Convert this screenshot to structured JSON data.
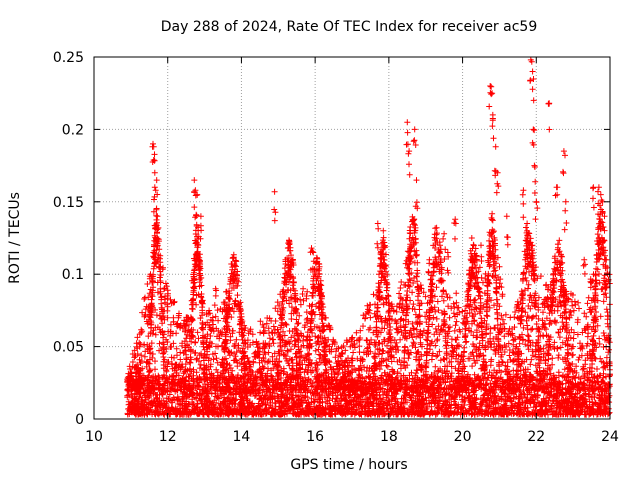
{
  "chart_data": {
    "type": "scatter",
    "title": "Day 288 of 2024, Rate Of TEC Index for receiver ac59",
    "xlabel": "GPS time / hours",
    "ylabel": "ROTI / TECUs",
    "xlim": [
      10,
      24
    ],
    "ylim": [
      0,
      0.25
    ],
    "x_ticks": [
      10,
      12,
      14,
      16,
      18,
      20,
      22,
      24
    ],
    "x_tick_labels": [
      "10",
      "12",
      "14",
      "16",
      "18",
      "20",
      "22",
      "24"
    ],
    "y_ticks": [
      0,
      0.05,
      0.1,
      0.15,
      0.2,
      0.25
    ],
    "y_tick_labels": [
      "0",
      "0.05",
      "0.1",
      "0.15",
      "0.2",
      "0.25"
    ],
    "grid": true,
    "marker": "+",
    "marker_color": "#ff0000",
    "series": [
      {
        "name": "ROTI",
        "x": [
          11.6,
          11.62,
          11.65,
          11.7,
          11.68,
          11.8,
          11.72,
          12.0,
          12.1,
          12.72,
          12.75,
          12.8,
          12.9,
          12.85,
          13.3,
          13.6,
          14.9,
          15.3,
          15.9,
          15.95,
          16.1,
          17.7,
          17.85,
          18.5,
          18.55,
          18.7,
          18.75,
          19.1,
          19.5,
          19.6,
          19.8,
          20.25,
          20.5,
          20.75,
          20.8,
          20.82,
          20.9,
          20.95,
          21.2,
          21.65,
          21.75,
          21.85,
          21.9,
          21.92,
          21.95,
          22.0,
          22.35,
          22.55,
          22.75,
          22.8,
          23.3,
          23.55,
          23.7,
          23.75,
          23.8,
          23.85,
          23.9,
          11.0,
          11.1,
          11.2,
          11.3,
          11.5,
          12.3,
          12.6,
          13.1,
          13.8,
          14.2,
          14.6,
          15.1,
          15.5,
          15.8,
          16.3,
          16.9,
          17.2,
          17.5,
          18.0,
          18.3,
          18.9,
          19.3,
          19.9,
          20.1,
          20.4,
          21.0,
          21.4,
          21.8,
          22.2,
          22.6,
          23.0,
          23.4,
          23.6
        ],
        "y": [
          0.19,
          0.188,
          0.16,
          0.165,
          0.12,
          0.09,
          0.14,
          0.085,
          0.08,
          0.165,
          0.158,
          0.155,
          0.14,
          0.11,
          0.09,
          0.088,
          0.157,
          0.105,
          0.118,
          0.115,
          0.1,
          0.135,
          0.13,
          0.205,
          0.185,
          0.2,
          0.165,
          0.11,
          0.128,
          0.115,
          0.138,
          0.125,
          0.12,
          0.23,
          0.225,
          0.21,
          0.188,
          0.17,
          0.14,
          0.158,
          0.135,
          0.248,
          0.24,
          0.2,
          0.175,
          0.15,
          0.218,
          0.16,
          0.185,
          0.15,
          0.11,
          0.16,
          0.16,
          0.155,
          0.15,
          0.14,
          0.11,
          0.03,
          0.025,
          0.02,
          0.04,
          0.05,
          0.03,
          0.06,
          0.05,
          0.045,
          0.04,
          0.06,
          0.07,
          0.03,
          0.06,
          0.04,
          0.02,
          0.035,
          0.07,
          0.06,
          0.08,
          0.05,
          0.06,
          0.05,
          0.07,
          0.065,
          0.06,
          0.055,
          0.07,
          0.08,
          0.06,
          0.05,
          0.065,
          0.07
        ]
      }
    ],
    "dense_band": {
      "y_min": 0.003,
      "y_max": 0.03,
      "note": "continuous dense cluster of points near zero from ~10.9 h to 24 h"
    },
    "envelope": [
      {
        "x": 10.9,
        "lo": 0.003,
        "hi": 0.03
      },
      {
        "x": 11.2,
        "lo": 0.003,
        "hi": 0.06
      },
      {
        "x": 11.4,
        "lo": 0.003,
        "hi": 0.09
      },
      {
        "x": 11.7,
        "lo": 0.003,
        "hi": 0.13
      },
      {
        "x": 12.0,
        "lo": 0.003,
        "hi": 0.09
      },
      {
        "x": 12.5,
        "lo": 0.003,
        "hi": 0.07
      },
      {
        "x": 12.8,
        "lo": 0.003,
        "hi": 0.12
      },
      {
        "x": 13.2,
        "lo": 0.003,
        "hi": 0.07
      },
      {
        "x": 13.7,
        "lo": 0.003,
        "hi": 0.09
      },
      {
        "x": 14.3,
        "lo": 0.003,
        "hi": 0.06
      },
      {
        "x": 14.8,
        "lo": 0.003,
        "hi": 0.08
      },
      {
        "x": 15.2,
        "lo": 0.003,
        "hi": 0.09
      },
      {
        "x": 15.7,
        "lo": 0.003,
        "hi": 0.09
      },
      {
        "x": 16.2,
        "lo": 0.003,
        "hi": 0.08
      },
      {
        "x": 16.6,
        "lo": 0.003,
        "hi": 0.05
      },
      {
        "x": 17.1,
        "lo": 0.003,
        "hi": 0.06
      },
      {
        "x": 17.6,
        "lo": 0.003,
        "hi": 0.09
      },
      {
        "x": 18.1,
        "lo": 0.003,
        "hi": 0.08
      },
      {
        "x": 18.5,
        "lo": 0.003,
        "hi": 0.12
      },
      {
        "x": 19.0,
        "lo": 0.003,
        "hi": 0.09
      },
      {
        "x": 19.5,
        "lo": 0.003,
        "hi": 0.1
      },
      {
        "x": 20.0,
        "lo": 0.003,
        "hi": 0.08
      },
      {
        "x": 20.5,
        "lo": 0.003,
        "hi": 0.1
      },
      {
        "x": 20.9,
        "lo": 0.003,
        "hi": 0.12
      },
      {
        "x": 21.3,
        "lo": 0.003,
        "hi": 0.07
      },
      {
        "x": 21.8,
        "lo": 0.003,
        "hi": 0.11
      },
      {
        "x": 22.3,
        "lo": 0.003,
        "hi": 0.1
      },
      {
        "x": 22.8,
        "lo": 0.003,
        "hi": 0.09
      },
      {
        "x": 23.3,
        "lo": 0.003,
        "hi": 0.08
      },
      {
        "x": 23.7,
        "lo": 0.003,
        "hi": 0.12
      },
      {
        "x": 24.0,
        "lo": 0.003,
        "hi": 0.1
      }
    ]
  }
}
